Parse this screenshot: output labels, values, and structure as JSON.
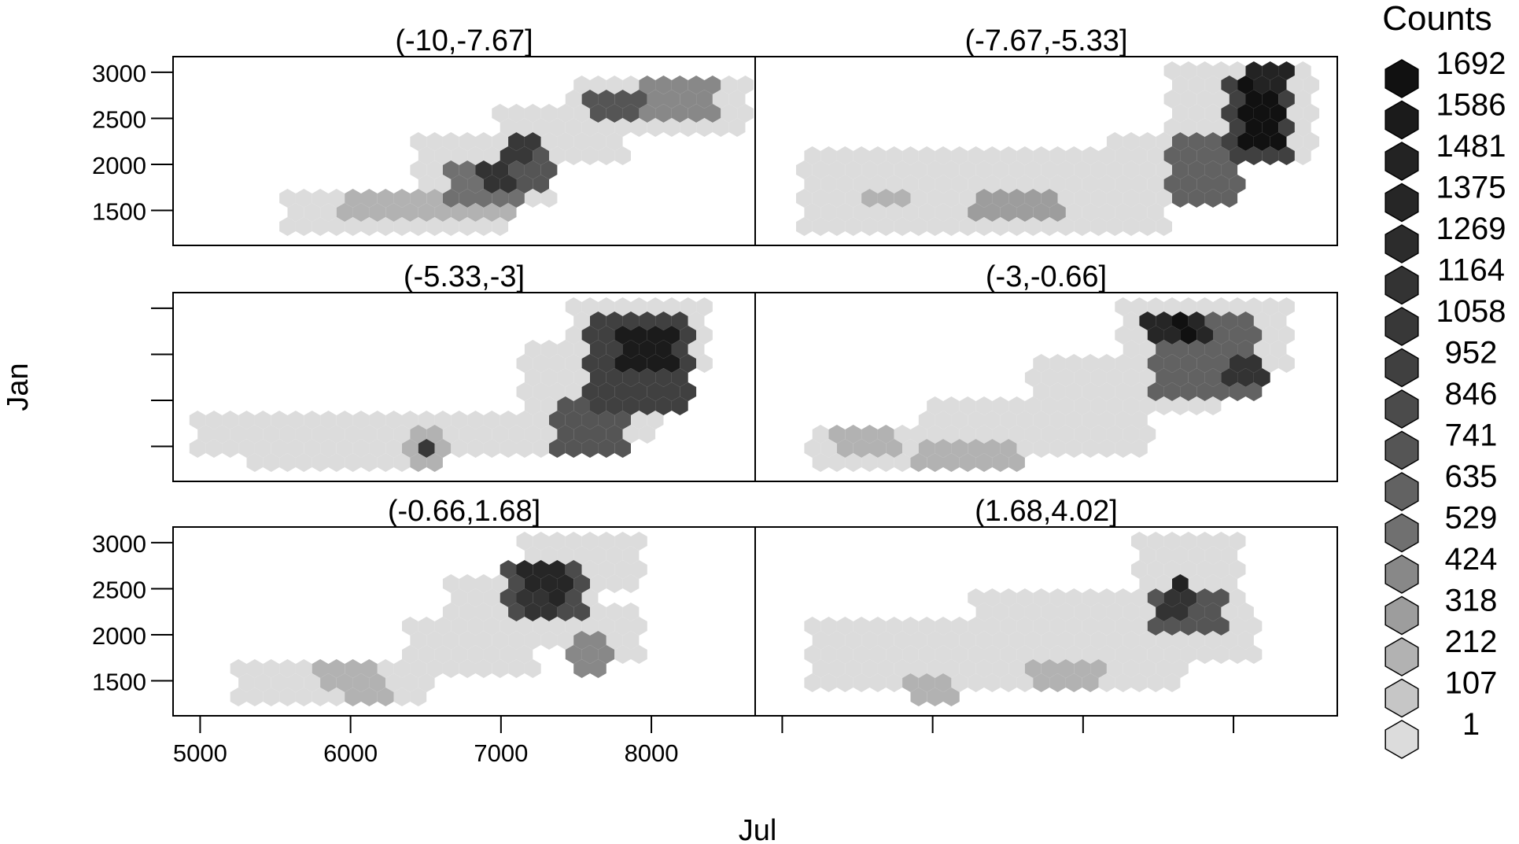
{
  "chart_data": {
    "type": "heatmap",
    "subtype": "hexbin trellis",
    "xlabel": "Jul",
    "ylabel": "Jan",
    "xlim": [
      4820,
      8690
    ],
    "ylim": [
      1120,
      3170
    ],
    "x_ticks": [
      5000,
      6000,
      7000,
      8000
    ],
    "y_ticks": [
      1500,
      2000,
      2500,
      3000
    ],
    "legend": {
      "title": "Counts",
      "placement": "right",
      "labels": [
        "1692",
        "1586",
        "1481",
        "1375",
        "1269",
        "1164",
        "1058",
        "952",
        "846",
        "741",
        "635",
        "529",
        "424",
        "318",
        "212",
        "107",
        "1"
      ],
      "shades": [
        "#111111",
        "#1b1b1b",
        "#232323",
        "#262626",
        "#2c2c2c",
        "#333333",
        "#383838",
        "#404040",
        "#4b4b4b",
        "#555555",
        "#626262",
        "#707070",
        "#888888",
        "#9d9d9d",
        "#b2b2b2",
        "#c6c6c6",
        "#dcdcdc"
      ]
    },
    "panels": [
      {
        "label": "(-0.66,1.68]",
        "regions": [
          {
            "x": [
              5300,
              6500
            ],
            "y": [
              1200,
              1700
            ],
            "level": 1
          },
          {
            "x": [
              6400,
              7200
            ],
            "y": [
              1600,
              2100
            ],
            "level": 1
          },
          {
            "x": [
              6700,
              7600
            ],
            "y": [
              2000,
              2500
            ],
            "level": 1
          },
          {
            "x": [
              7200,
              7900
            ],
            "y": [
              2500,
              3000
            ],
            "level": 1
          },
          {
            "x": [
              7500,
              7900
            ],
            "y": [
              1800,
              2200
            ],
            "level": 1
          },
          {
            "x": [
              5800,
              6100
            ],
            "y": [
              1550,
              1650
            ],
            "level": 3
          },
          {
            "x": [
              6000,
              6200
            ],
            "y": [
              1300,
              1500
            ],
            "level": 3
          },
          {
            "x": [
              7100,
              7500
            ],
            "y": [
              2250,
              2650
            ],
            "level": 9
          },
          {
            "x": [
              7200,
              7400
            ],
            "y": [
              2450,
              2650
            ],
            "level": 14
          },
          {
            "x": [
              7200,
              7300
            ],
            "y": [
              2300,
              2400
            ],
            "level": 12
          },
          {
            "x": [
              7500,
              7700
            ],
            "y": [
              1700,
              1950
            ],
            "level": 5
          }
        ]
      },
      {
        "label": "(1.68,4.02]",
        "regions": [
          {
            "x": [
              5250,
              7600
            ],
            "y": [
              1500,
              2100
            ],
            "level": 1
          },
          {
            "x": [
              6300,
              7700
            ],
            "y": [
              2100,
              2400
            ],
            "level": 1
          },
          {
            "x": [
              7400,
              8000
            ],
            "y": [
              2400,
              3000
            ],
            "level": 1
          },
          {
            "x": [
              7500,
              8100
            ],
            "y": [
              1800,
              2300
            ],
            "level": 1
          },
          {
            "x": [
              6700,
              7100
            ],
            "y": [
              1550,
              1650
            ],
            "level": 3
          },
          {
            "x": [
              5900,
              6100
            ],
            "y": [
              1400,
              1450
            ],
            "level": 3
          },
          {
            "x": [
              7500,
              7900
            ],
            "y": [
              2100,
              2450
            ],
            "level": 8
          },
          {
            "x": [
              7600,
              7700
            ],
            "y": [
              2400,
              2550
            ],
            "level": 15
          },
          {
            "x": [
              7550,
              7650
            ],
            "y": [
              2250,
              2350
            ],
            "level": 12
          }
        ]
      },
      {
        "label": "(-5.33,-3]",
        "regions": [
          {
            "x": [
              5000,
              7600
            ],
            "y": [
              1500,
              1800
            ],
            "level": 1
          },
          {
            "x": [
              5350,
              6300
            ],
            "y": [
              1400,
              1500
            ],
            "level": 1
          },
          {
            "x": [
              7200,
              8000
            ],
            "y": [
              1700,
              2500
            ],
            "level": 1
          },
          {
            "x": [
              7500,
              8300
            ],
            "y": [
              2400,
              3000
            ],
            "level": 1
          },
          {
            "x": [
              6450,
              6600
            ],
            "y": [
              1400,
              1600
            ],
            "level": 3
          },
          {
            "x": [
              6500,
              6550
            ],
            "y": [
              1500,
              1550
            ],
            "level": 11
          },
          {
            "x": [
              7400,
              7800
            ],
            "y": [
              1500,
              2000
            ],
            "level": 8
          },
          {
            "x": [
              7600,
              8200
            ],
            "y": [
              2000,
              2800
            ],
            "level": 10
          },
          {
            "x": [
              7850,
              8100
            ],
            "y": [
              2350,
              2700
            ],
            "level": 16
          }
        ]
      },
      {
        "label": "(-3,-0.66]",
        "regions": [
          {
            "x": [
              5250,
              6400
            ],
            "y": [
              1300,
              1700
            ],
            "level": 1
          },
          {
            "x": [
              6000,
              7400
            ],
            "y": [
              1500,
              2000
            ],
            "level": 1
          },
          {
            "x": [
              6700,
              7900
            ],
            "y": [
              2000,
              2400
            ],
            "level": 1
          },
          {
            "x": [
              7300,
              8300
            ],
            "y": [
              2400,
              3000
            ],
            "level": 1
          },
          {
            "x": [
              5400,
              5700
            ],
            "y": [
              1550,
              1650
            ],
            "level": 3
          },
          {
            "x": [
              5950,
              6550
            ],
            "y": [
              1400,
              1500
            ],
            "level": 3
          },
          {
            "x": [
              7500,
              8100
            ],
            "y": [
              2100,
              2900
            ],
            "level": 7
          },
          {
            "x": [
              7450,
              7800
            ],
            "y": [
              2650,
              2800
            ],
            "level": 14
          },
          {
            "x": [
              7650,
              7700
            ],
            "y": [
              2700,
              2800
            ],
            "level": 17
          },
          {
            "x": [
              8000,
              8150
            ],
            "y": [
              2200,
              2350
            ],
            "level": 12
          }
        ]
      },
      {
        "label": "(-10,-7.67]",
        "regions": [
          {
            "x": [
              5600,
              7000
            ],
            "y": [
              1200,
              1700
            ],
            "level": 1
          },
          {
            "x": [
              6500,
              7300
            ],
            "y": [
              1600,
              2200
            ],
            "level": 1
          },
          {
            "x": [
              7000,
              7800
            ],
            "y": [
              2100,
              2600
            ],
            "level": 1
          },
          {
            "x": [
              7500,
              8600
            ],
            "y": [
              2450,
              2900
            ],
            "level": 1
          },
          {
            "x": [
              6000,
              7000
            ],
            "y": [
              1450,
              1650
            ],
            "level": 3
          },
          {
            "x": [
              6700,
              7100
            ],
            "y": [
              1650,
              2000
            ],
            "level": 6
          },
          {
            "x": [
              7000,
              7300
            ],
            "y": [
              1850,
              2150
            ],
            "level": 8
          },
          {
            "x": [
              6900,
              7000
            ],
            "y": [
              1800,
              1950
            ],
            "level": 12
          },
          {
            "x": [
              7100,
              7200
            ],
            "y": [
              2100,
              2200
            ],
            "level": 11
          },
          {
            "x": [
              7600,
              7900
            ],
            "y": [
              2500,
              2750
            ],
            "level": 8
          },
          {
            "x": [
              8000,
              8400
            ],
            "y": [
              2550,
              2800
            ],
            "level": 5
          }
        ]
      },
      {
        "label": "(-7.67,-5.33]",
        "regions": [
          {
            "x": [
              5200,
              7500
            ],
            "y": [
              1350,
              2050
            ],
            "level": 1
          },
          {
            "x": [
              7200,
              7800
            ],
            "y": [
              1600,
              2300
            ],
            "level": 1
          },
          {
            "x": [
              7600,
              8500
            ],
            "y": [
              2100,
              3000
            ],
            "level": 1
          },
          {
            "x": [
              5600,
              5800
            ],
            "y": [
              1600,
              1700
            ],
            "level": 3
          },
          {
            "x": [
              6300,
              6800
            ],
            "y": [
              1550,
              1650
            ],
            "level": 4
          },
          {
            "x": [
              7600,
              8000
            ],
            "y": [
              1700,
              2200
            ],
            "level": 7
          },
          {
            "x": [
              8000,
              8300
            ],
            "y": [
              2100,
              2900
            ],
            "level": 10
          },
          {
            "x": [
              8100,
              8250
            ],
            "y": [
              2250,
              2800
            ],
            "level": 17
          },
          {
            "x": [
              8150,
              8300
            ],
            "y": [
              2850,
              3000
            ],
            "level": 15
          }
        ]
      }
    ]
  }
}
